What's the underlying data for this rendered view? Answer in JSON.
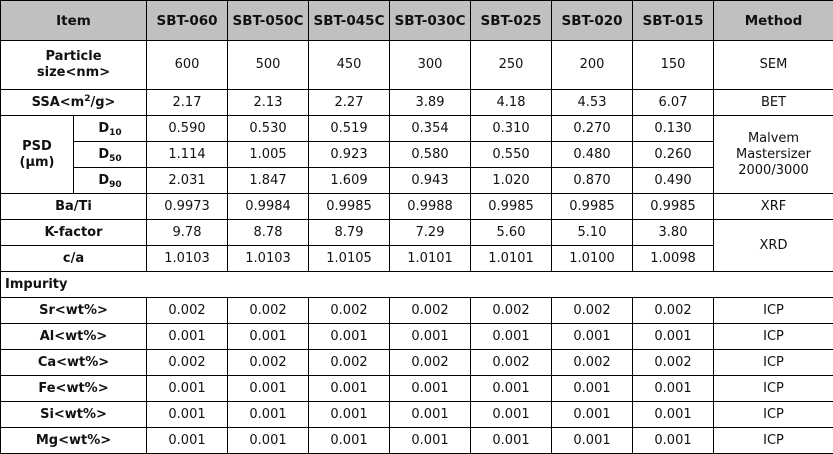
{
  "header": {
    "item": "Item",
    "products": [
      "SBT-060",
      "SBT-050C",
      "SBT-045C",
      "SBT-030C",
      "SBT-025",
      "SBT-020",
      "SBT-015"
    ],
    "method": "Method"
  },
  "particle": {
    "label_1": "Particle",
    "label_2": "size<nm>",
    "values": [
      "600",
      "500",
      "450",
      "300",
      "250",
      "200",
      "150"
    ],
    "method": "SEM"
  },
  "ssa": {
    "label_pre": "SSA<m",
    "label_sup": "2",
    "label_post": "/g>",
    "values": [
      "2.17",
      "2.13",
      "2.27",
      "3.89",
      "4.18",
      "4.53",
      "6.07"
    ],
    "method": "BET"
  },
  "psd": {
    "label_1": "PSD",
    "label_2": "(μm)",
    "method_1": "Malvem",
    "method_2": "Mastersizer",
    "method_3": "2000/3000",
    "rows": [
      {
        "d": "D",
        "sub": "10",
        "values": [
          "0.590",
          "0.530",
          "0.519",
          "0.354",
          "0.310",
          "0.270",
          "0.130"
        ]
      },
      {
        "d": "D",
        "sub": "50",
        "values": [
          "1.114",
          "1.005",
          "0.923",
          "0.580",
          "0.550",
          "0.480",
          "0.260"
        ]
      },
      {
        "d": "D",
        "sub": "90",
        "values": [
          "2.031",
          "1.847",
          "1.609",
          "0.943",
          "1.020",
          "0.870",
          "0.490"
        ]
      }
    ]
  },
  "bati": {
    "label": "Ba/Ti",
    "values": [
      "0.9973",
      "0.9984",
      "0.9985",
      "0.9988",
      "0.9985",
      "0.9985",
      "0.9985"
    ],
    "method": "XRF"
  },
  "kfactor": {
    "label": "K-factor",
    "values": [
      "9.78",
      "8.78",
      "8.79",
      "7.29",
      "5.60",
      "5.10",
      "3.80"
    ]
  },
  "ca": {
    "label": "c/a",
    "values": [
      "1.0103",
      "1.0103",
      "1.0105",
      "1.0101",
      "1.0101",
      "1.0100",
      "1.0098"
    ]
  },
  "xrd_method": "XRD",
  "impurity": {
    "title": "Impurity",
    "rows": [
      {
        "label": "Sr<wt%>",
        "values": [
          "0.002",
          "0.002",
          "0.002",
          "0.002",
          "0.002",
          "0.002",
          "0.002"
        ],
        "method": "ICP"
      },
      {
        "label": "Al<wt%>",
        "values": [
          "0.001",
          "0.001",
          "0.001",
          "0.001",
          "0.001",
          "0.001",
          "0.001"
        ],
        "method": "ICP"
      },
      {
        "label": "Ca<wt%>",
        "values": [
          "0.002",
          "0.002",
          "0.002",
          "0.002",
          "0.002",
          "0.002",
          "0.002"
        ],
        "method": "ICP"
      },
      {
        "label": "Fe<wt%>",
        "values": [
          "0.001",
          "0.001",
          "0.001",
          "0.001",
          "0.001",
          "0.001",
          "0.001"
        ],
        "method": "ICP"
      },
      {
        "label": "Si<wt%>",
        "values": [
          "0.001",
          "0.001",
          "0.001",
          "0.001",
          "0.001",
          "0.001",
          "0.001"
        ],
        "method": "ICP"
      },
      {
        "label": "Mg<wt%>",
        "values": [
          "0.001",
          "0.001",
          "0.001",
          "0.001",
          "0.001",
          "0.001",
          "0.001"
        ],
        "method": "ICP"
      }
    ]
  }
}
